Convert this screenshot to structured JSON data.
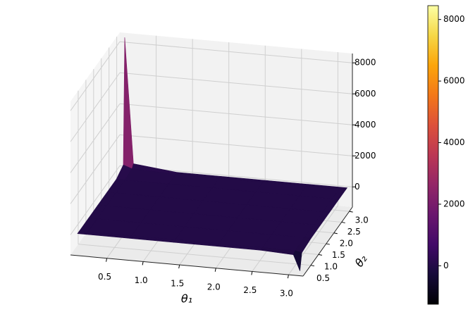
{
  "chart_data": {
    "type": "surface",
    "x_label": "θ₁",
    "y_label": "θ₂",
    "x": [
      0.08,
      0.2,
      0.8,
      1.4,
      2.0,
      2.6,
      3.05,
      3.14
    ],
    "y": [
      0.08,
      0.2,
      0.8,
      1.4,
      2.0,
      2.6,
      3.05,
      3.14
    ],
    "z": [
      [
        0,
        0,
        0,
        0,
        0,
        0,
        -100,
        -1100
      ],
      [
        0,
        0,
        0,
        0,
        0,
        0,
        0,
        -100
      ],
      [
        0,
        0,
        0,
        0,
        0,
        0,
        0,
        0
      ],
      [
        0,
        0,
        0,
        0,
        0,
        0,
        0,
        0
      ],
      [
        0,
        0,
        0,
        0,
        0,
        0,
        0,
        0
      ],
      [
        0,
        0,
        0,
        0,
        0,
        0,
        0,
        0
      ],
      [
        300,
        100,
        0,
        0,
        0,
        0,
        0,
        0
      ],
      [
        8400,
        300,
        0,
        0,
        0,
        0,
        0,
        0
      ]
    ],
    "colormap": "inferno",
    "xlim": [
      0,
      3.2
    ],
    "ylim": [
      0,
      3.2
    ],
    "zlim": [
      -1300,
      8600
    ],
    "xticks": [
      0.5,
      {
        "value": 1,
        "label": "1.0"
      },
      1.5,
      {
        "value": 2,
        "label": "2.0"
      },
      2.5,
      {
        "value": 3,
        "label": "3.0"
      }
    ],
    "yticks": [
      0.5,
      {
        "value": 1,
        "label": "1.0"
      },
      1.5,
      {
        "value": 2,
        "label": "2.0"
      },
      2.5,
      {
        "value": 3,
        "label": "3.0"
      }
    ],
    "zticks": [
      0,
      2000,
      4000,
      6000,
      8000
    ],
    "clim": [
      -1250,
      8450
    ],
    "cticks": [
      0,
      2000,
      4000,
      6000,
      8000
    ],
    "grid": true
  }
}
